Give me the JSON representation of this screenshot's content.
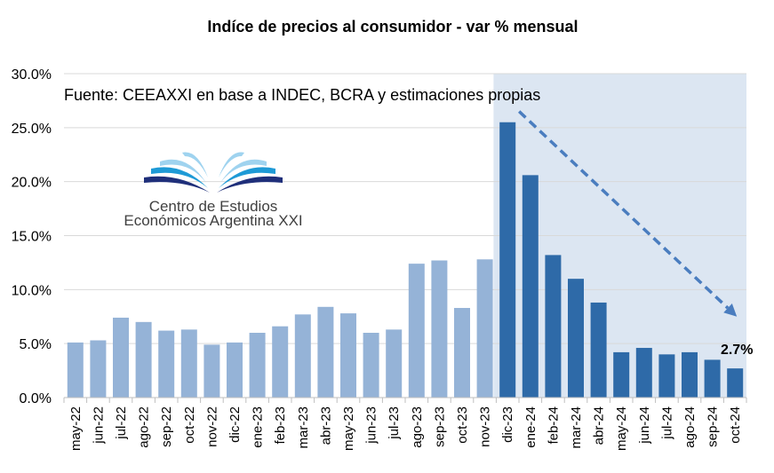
{
  "chart_data": {
    "type": "bar",
    "title": "Indíce de precios al consumidor  - var % mensual",
    "source": "Fuente: CEEAXXI en base a INDEC, BCRA y estimaciones propias",
    "ylim": [
      0,
      30
    ],
    "yticks": [
      "0.0%",
      "5.0%",
      "10.0%",
      "15.0%",
      "20.0%",
      "25.0%",
      "30.0%"
    ],
    "ytick_values": [
      0,
      5,
      10,
      15,
      20,
      25,
      30
    ],
    "grid": true,
    "categories": [
      "may-22",
      "jun-22",
      "jul-22",
      "ago-22",
      "sep-22",
      "oct-22",
      "nov-22",
      "dic-22",
      "ene-23",
      "feb-23",
      "mar-23",
      "abr-23",
      "may-23",
      "jun-23",
      "jul-23",
      "ago-23",
      "sep-23",
      "oct-23",
      "nov-23",
      "dic-23",
      "ene-24",
      "feb-24",
      "mar-24",
      "abr-24",
      "may-24",
      "jun-24",
      "jul-24",
      "ago-24",
      "sep-24",
      "oct-24"
    ],
    "values": [
      5.1,
      5.3,
      7.4,
      7.0,
      6.2,
      6.3,
      4.9,
      5.1,
      6.0,
      6.6,
      7.7,
      8.4,
      7.8,
      6.0,
      6.3,
      12.4,
      12.7,
      8.3,
      12.8,
      25.5,
      20.6,
      13.2,
      11.0,
      8.8,
      4.2,
      4.6,
      4.0,
      4.2,
      3.5,
      2.7
    ],
    "highlight_start_index": 19,
    "colors": {
      "before": "#95b3d7",
      "after": "#2e6aa8",
      "shade": "#dce6f2",
      "arrow": "#4a7dbf",
      "grid": "#d9d9d9"
    },
    "annotation": {
      "text": "2.7%",
      "category_index": 29
    },
    "trend_arrow": {
      "from": {
        "category_index": 19,
        "value": 26.5
      },
      "to": {
        "category_index": 29,
        "value": 7.5
      }
    }
  },
  "logo": {
    "line1": "Centro de Estudios",
    "line2": "Económicos Argentina XXI",
    "colors": [
      "#1f2f7a",
      "#1e9ad6",
      "#9fd3ef"
    ]
  }
}
